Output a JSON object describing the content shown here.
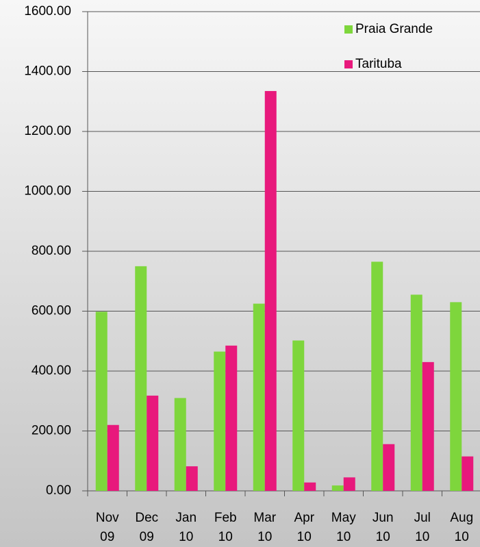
{
  "chart_data": {
    "type": "bar",
    "categories": [
      "Nov 09",
      "Dec 09",
      "Jan 10",
      "Feb 10",
      "Mar 10",
      "Apr 10",
      "May 10",
      "Jun 10",
      "Jul 10",
      "Aug 10"
    ],
    "series": [
      {
        "name": "Praia Grande",
        "color": "#7ed63c",
        "values": [
          598,
          750,
          310,
          465,
          625,
          502,
          18,
          765,
          655,
          630
        ]
      },
      {
        "name": "Tarituba",
        "color": "#e8197c",
        "values": [
          220,
          318,
          82,
          485,
          1335,
          28,
          45,
          156,
          430,
          115
        ]
      }
    ],
    "ylim": [
      0,
      1600
    ],
    "yticks": [
      {
        "value": 0,
        "label": "0.00"
      },
      {
        "value": 200,
        "label": "200.00"
      },
      {
        "value": 400,
        "label": "400.00"
      },
      {
        "value": 600,
        "label": "600.00"
      },
      {
        "value": 800,
        "label": "800.00"
      },
      {
        "value": 1000,
        "label": "1000.00"
      },
      {
        "value": 1200,
        "label": "1200.00"
      },
      {
        "value": 1400,
        "label": "1400.00"
      },
      {
        "value": 1600,
        "label": "1600.00"
      }
    ],
    "grid": true,
    "legend": "upper right"
  }
}
